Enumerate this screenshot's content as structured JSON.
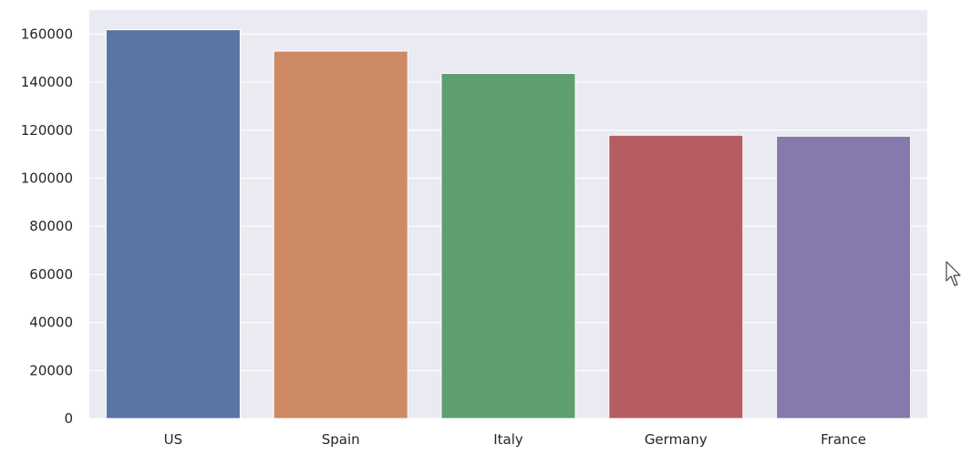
{
  "chart_data": {
    "type": "bar",
    "title": "",
    "xlabel": "",
    "ylabel": "",
    "categories": [
      "US",
      "Spain",
      "Italy",
      "Germany",
      "France"
    ],
    "values": [
      161800,
      152900,
      143600,
      117900,
      117500
    ],
    "ylim": [
      0,
      170000
    ],
    "yticks": [
      "0",
      "20000",
      "40000",
      "60000",
      "80000",
      "100000",
      "120000",
      "140000",
      "160000"
    ],
    "colors": [
      "#5975a4",
      "#cc8963",
      "#5f9e6e",
      "#b55d60",
      "#857aab"
    ],
    "grid": true,
    "legend": "none",
    "style": {
      "plot_background": "#eaeaf2",
      "grid_color": "#ffffff"
    }
  },
  "cursor": {
    "icon": "arrow-pointer-icon"
  }
}
